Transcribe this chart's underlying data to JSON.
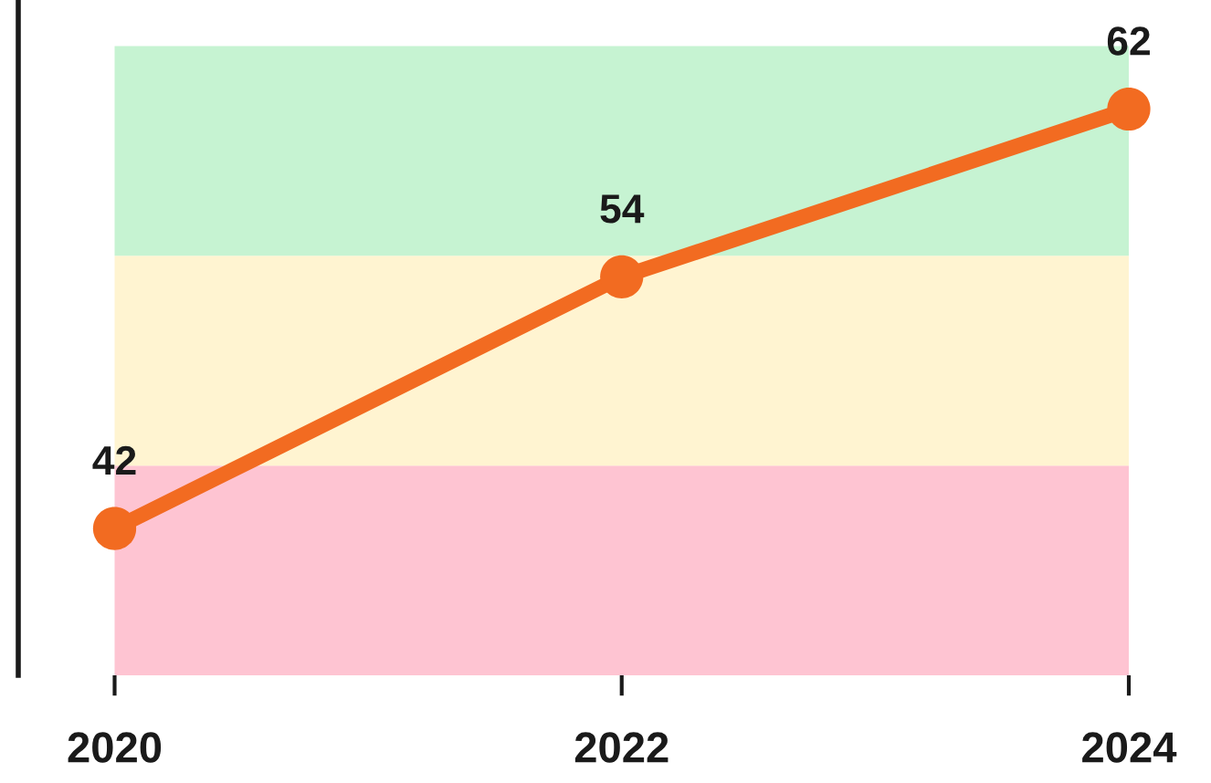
{
  "chart_data": {
    "type": "line",
    "x": [
      2020,
      2022,
      2024
    ],
    "series": [
      {
        "color": "#f26b21",
        "values": [
          42,
          54,
          62
        ]
      }
    ],
    "xlim": [
      2019.62,
      2024
    ],
    "ylim": [
      35,
      67.2
    ],
    "xticks": [
      2020,
      2022,
      2024
    ],
    "tick_labels": "x",
    "data_labels": true,
    "marker": "circle",
    "line_style": "solid",
    "grid": false,
    "legend": false,
    "bands": [
      {
        "axis": "y",
        "from": 35,
        "to": 45,
        "color": "#fec4d2"
      },
      {
        "axis": "y",
        "from": 45,
        "to": 55,
        "color": "#fff4d1"
      },
      {
        "axis": "y",
        "from": 55,
        "to": 65,
        "color": "#c6f3d2"
      }
    ]
  }
}
